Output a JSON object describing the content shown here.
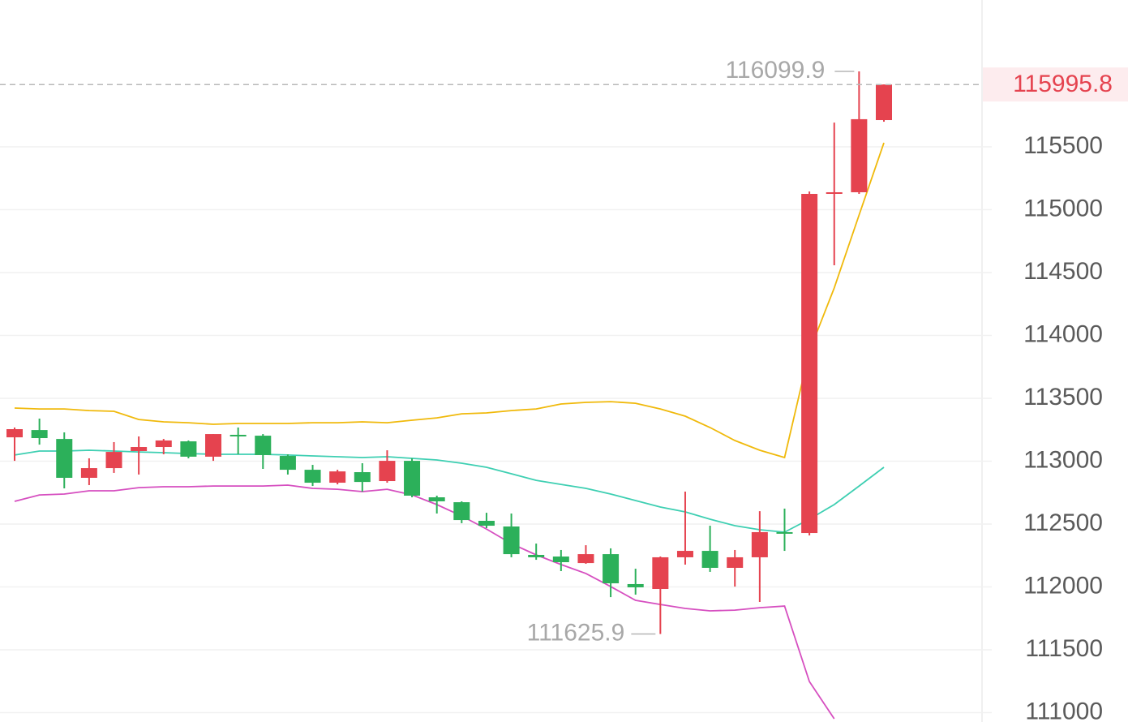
{
  "chart_data": {
    "type": "candlestick",
    "ylim": [
      110926,
      116668
    ],
    "yticks": [
      111000,
      111500,
      112000,
      112500,
      113000,
      113500,
      114000,
      114500,
      115000,
      115500
    ],
    "grid": true,
    "up_color": "#e5434f",
    "down_color": "#2cb05a",
    "open": [
      113190,
      113248,
      113177,
      112868,
      112945,
      113081,
      113113,
      113158,
      113036,
      113210,
      113203,
      113042,
      112932,
      112829,
      112913,
      112842,
      113003,
      112713,
      112674,
      112526,
      112481,
      112255,
      112242,
      112190,
      112261,
      112023,
      111984,
      112236,
      112287,
      112152,
      112236,
      112436,
      112429,
      115132,
      115139,
      115713
    ],
    "high": [
      113268,
      113339,
      113229,
      113023,
      113152,
      113197,
      113177,
      113165,
      113216,
      113268,
      113216,
      113055,
      112971,
      112932,
      112984,
      113087,
      113023,
      112726,
      112681,
      112590,
      112584,
      112345,
      112294,
      112332,
      112307,
      112145,
      112242,
      112758,
      112487,
      112294,
      112603,
      112623,
      115145,
      115693,
      116099.9,
      115996
    ],
    "low": [
      113003,
      113132,
      112784,
      112810,
      112907,
      112894,
      113055,
      113023,
      113003,
      113055,
      112939,
      112894,
      112803,
      112816,
      112758,
      112829,
      112713,
      112584,
      112507,
      112468,
      112236,
      112216,
      112126,
      112184,
      111919,
      111939,
      111625.9,
      112178,
      112120,
      112003,
      111881,
      112287,
      112410,
      114558,
      115126,
      115700
    ],
    "close": [
      113255,
      113184,
      112868,
      112945,
      113074,
      113113,
      113165,
      113036,
      113216,
      113203,
      113049,
      112932,
      112829,
      112919,
      112835,
      113003,
      112726,
      112681,
      112532,
      112487,
      112261,
      112236,
      112197,
      112261,
      112029,
      111997,
      112236,
      112287,
      112152,
      112236,
      112436,
      112429,
      115126,
      115139,
      115720,
      115995.8
    ],
    "lines": [
      {
        "color": "#f0b90b",
        "values": [
          113423,
          113416,
          113416,
          113403,
          113397,
          113332,
          113313,
          113306,
          113294,
          113300,
          113300,
          113300,
          113306,
          113306,
          113313,
          113306,
          113326,
          113345,
          113377,
          113384,
          113403,
          113416,
          113455,
          113468,
          113474,
          113461,
          113416,
          113358,
          113268,
          113165,
          113087,
          113029,
          113874,
          114377,
          114958,
          115532
        ]
      },
      {
        "color": "#3ecfb2",
        "values": [
          113049,
          113081,
          113081,
          113087,
          113081,
          113074,
          113068,
          113061,
          113055,
          113055,
          113055,
          113049,
          113042,
          113036,
          113029,
          113036,
          113023,
          113010,
          112984,
          112952,
          112900,
          112848,
          112816,
          112784,
          112739,
          112687,
          112636,
          112597,
          112539,
          112487,
          112455,
          112436,
          112539,
          112655,
          112803,
          112952
        ]
      },
      {
        "color": "#d64fc0",
        "values": [
          112681,
          112732,
          112739,
          112765,
          112765,
          112790,
          112797,
          112797,
          112803,
          112803,
          112803,
          112810,
          112784,
          112777,
          112758,
          112777,
          112732,
          112655,
          112565,
          112461,
          112345,
          112255,
          112178,
          112107,
          112003,
          111894,
          111861,
          111829,
          111810,
          111816,
          111835,
          111848,
          111248,
          110952,
          null,
          null
        ]
      }
    ]
  }
}
